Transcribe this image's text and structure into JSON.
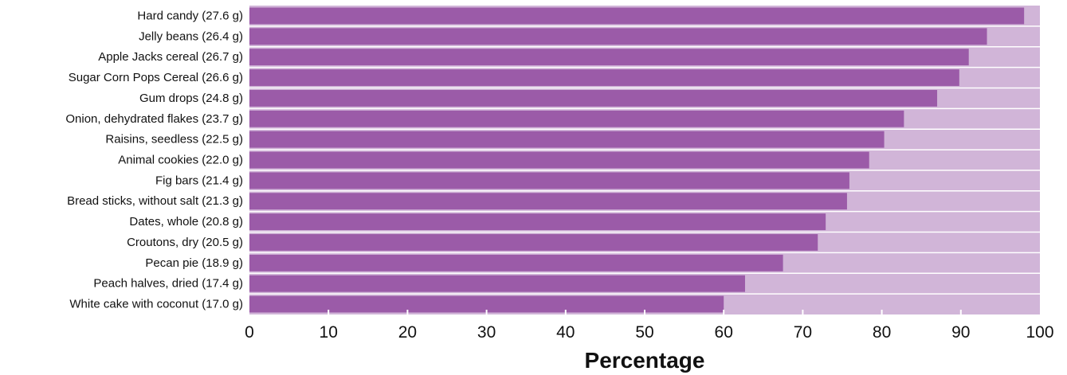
{
  "chart_data": {
    "type": "bar",
    "orientation": "horizontal",
    "categories": [
      "Hard candy (27.6 g)",
      "Jelly beans (26.4 g)",
      "Apple Jacks cereal (26.7 g)",
      "Sugar Corn Pops Cereal (26.6 g)",
      "Gum drops (24.8 g)",
      "Onion, dehydrated flakes (23.7 g)",
      "Raisins, seedless (22.5 g)",
      "Animal cookies (22.0 g)",
      "Fig bars (21.4 g)",
      "Bread sticks, without salt (21.3 g)",
      "Dates, whole (20.8 g)",
      "Croutons, dry (20.5 g)",
      "Pecan pie (18.9 g)",
      "Peach halves, dried (17.4 g)",
      "White cake with coconut (17.0 g)"
    ],
    "values": [
      98,
      93.3,
      91,
      89.8,
      87,
      82.8,
      80.3,
      78.4,
      75.9,
      75.6,
      72.9,
      71.9,
      67.5,
      62.7,
      60
    ],
    "xlabel": "Percentage",
    "ylabel": "",
    "xlim": [
      0,
      100
    ],
    "xticks": [
      0,
      10,
      20,
      30,
      40,
      50,
      60,
      70,
      80,
      90,
      100
    ],
    "grid": false,
    "colors": {
      "bar": "#9b5ba8",
      "background": "#d1b5d8",
      "separator": "#ffffff"
    }
  }
}
